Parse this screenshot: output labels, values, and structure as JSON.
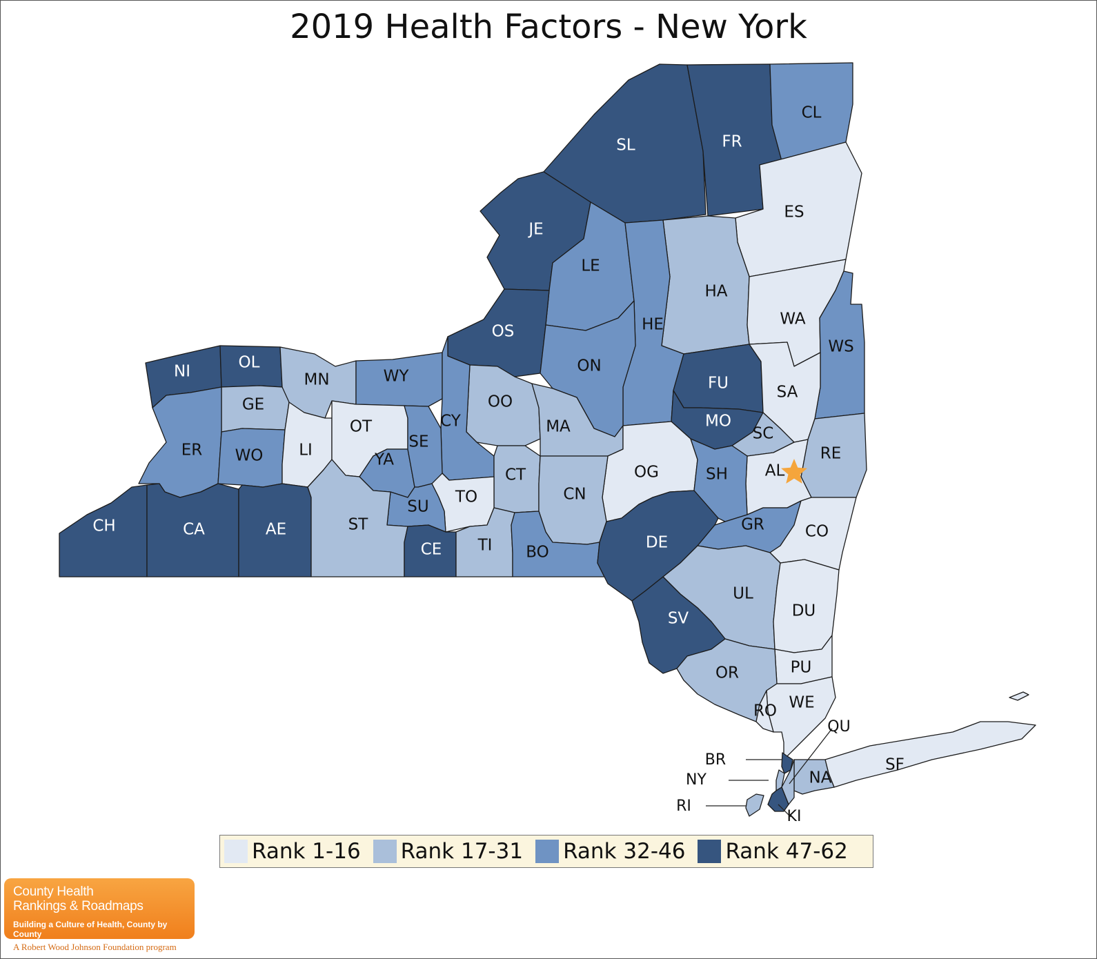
{
  "title": "2019 Health Factors - New York",
  "legend": [
    {
      "label": "Rank 1-16",
      "color": "#e2e9f3"
    },
    {
      "label": "Rank 17-31",
      "color": "#aabfda"
    },
    {
      "label": "Rank 32-46",
      "color": "#6f93c3"
    },
    {
      "label": "Rank 47-62",
      "color": "#36557f"
    }
  ],
  "counties": [
    {
      "abbr": "SL",
      "rank_band": 4
    },
    {
      "abbr": "FR",
      "rank_band": 4
    },
    {
      "abbr": "CL",
      "rank_band": 3
    },
    {
      "abbr": "JE",
      "rank_band": 4
    },
    {
      "abbr": "LE",
      "rank_band": 3
    },
    {
      "abbr": "ES",
      "rank_band": 1
    },
    {
      "abbr": "HA",
      "rank_band": 2
    },
    {
      "abbr": "HE",
      "rank_band": 3
    },
    {
      "abbr": "WA",
      "rank_band": 1
    },
    {
      "abbr": "WS",
      "rank_band": 3
    },
    {
      "abbr": "OS",
      "rank_band": 4
    },
    {
      "abbr": "ON",
      "rank_band": 3
    },
    {
      "abbr": "NI",
      "rank_band": 4
    },
    {
      "abbr": "OL",
      "rank_band": 4
    },
    {
      "abbr": "MN",
      "rank_band": 2
    },
    {
      "abbr": "WY",
      "rank_band": 3
    },
    {
      "abbr": "FU",
      "rank_band": 4
    },
    {
      "abbr": "SA",
      "rank_band": 1
    },
    {
      "abbr": "GE",
      "rank_band": 2
    },
    {
      "abbr": "OO",
      "rank_band": 2
    },
    {
      "abbr": "CY",
      "rank_band": 3
    },
    {
      "abbr": "MO",
      "rank_band": 4
    },
    {
      "abbr": "SC",
      "rank_band": 2
    },
    {
      "abbr": "RE",
      "rank_band": 2
    },
    {
      "abbr": "ER",
      "rank_band": 3
    },
    {
      "abbr": "WO",
      "rank_band": 3
    },
    {
      "abbr": "LI",
      "rank_band": 1
    },
    {
      "abbr": "OT",
      "rank_band": 1
    },
    {
      "abbr": "YA",
      "rank_band": 3
    },
    {
      "abbr": "SE",
      "rank_band": 3
    },
    {
      "abbr": "MA",
      "rank_band": 2
    },
    {
      "abbr": "AL",
      "rank_band": 1
    },
    {
      "abbr": "OG",
      "rank_band": 1
    },
    {
      "abbr": "SH",
      "rank_band": 3
    },
    {
      "abbr": "CT",
      "rank_band": 2
    },
    {
      "abbr": "CN",
      "rank_band": 2
    },
    {
      "abbr": "TO",
      "rank_band": 1
    },
    {
      "abbr": "SU",
      "rank_band": 3
    },
    {
      "abbr": "CH",
      "rank_band": 4
    },
    {
      "abbr": "CA",
      "rank_band": 4
    },
    {
      "abbr": "AE",
      "rank_band": 4
    },
    {
      "abbr": "ST",
      "rank_band": 2
    },
    {
      "abbr": "CE",
      "rank_band": 4
    },
    {
      "abbr": "TI",
      "rank_band": 2
    },
    {
      "abbr": "BO",
      "rank_band": 3
    },
    {
      "abbr": "DE",
      "rank_band": 4
    },
    {
      "abbr": "GR",
      "rank_band": 3
    },
    {
      "abbr": "CO",
      "rank_band": 1
    },
    {
      "abbr": "UL",
      "rank_band": 2
    },
    {
      "abbr": "DU",
      "rank_band": 1
    },
    {
      "abbr": "SV",
      "rank_band": 4
    },
    {
      "abbr": "PU",
      "rank_band": 1
    },
    {
      "abbr": "OR",
      "rank_band": 2
    },
    {
      "abbr": "WE",
      "rank_band": 1
    },
    {
      "abbr": "RO",
      "rank_band": 1
    },
    {
      "abbr": "SF",
      "rank_band": 1
    },
    {
      "abbr": "NA",
      "rank_band": 2
    },
    {
      "abbr": "BR",
      "rank_band": 4
    },
    {
      "abbr": "NY",
      "rank_band": 2
    },
    {
      "abbr": "QU",
      "rank_band": 2
    },
    {
      "abbr": "KI",
      "rank_band": 4
    },
    {
      "abbr": "RI",
      "rank_band": 2
    }
  ],
  "capital_marker": {
    "county": "AL",
    "icon": "star-icon",
    "color": "#f5a53c"
  },
  "logo": {
    "line1": "County Health",
    "line2": "Rankings & Roadmaps",
    "tagline": "Building a Culture of Health, County by County",
    "footer": "A Robert Wood Johnson Foundation program"
  }
}
